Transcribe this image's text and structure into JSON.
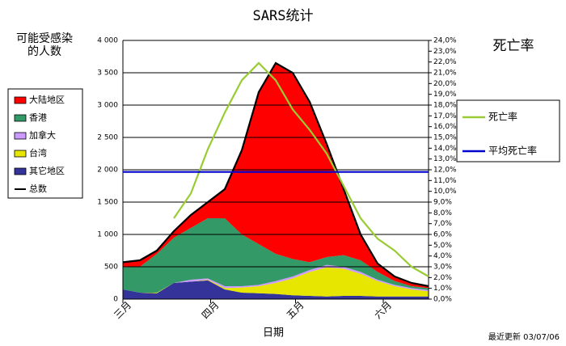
{
  "chart_data": {
    "type": "area",
    "stacked": true,
    "title": "SARS统计",
    "y_label": [
      "可能受感染",
      "的人数"
    ],
    "y2_label": "死亡率",
    "x_label": "日期",
    "footer": "最近更新 03/07/06",
    "x": [
      0,
      6,
      12,
      18,
      24,
      30,
      36,
      42,
      48,
      54,
      60,
      66,
      72,
      78,
      84,
      90,
      96,
      102,
      108
    ],
    "xlim": [
      0,
      108
    ],
    "xticks": [
      {
        "value": 0,
        "label": "三月"
      },
      {
        "value": 31,
        "label": "四月"
      },
      {
        "value": 61,
        "label": "五月"
      },
      {
        "value": 92,
        "label": "六月"
      }
    ],
    "ylim": [
      0,
      4000
    ],
    "yticks": [
      0,
      500,
      {
        "value": 1000,
        "label": "1 000"
      },
      {
        "value": 1500,
        "label": "1 500"
      },
      {
        "value": 2000,
        "label": "2 000"
      },
      {
        "value": 2500,
        "label": "2 500"
      },
      {
        "value": 3000,
        "label": "3 000"
      },
      {
        "value": 3500,
        "label": "3 500"
      },
      {
        "value": 4000,
        "label": "4 000"
      }
    ],
    "y2lim": [
      0,
      24
    ],
    "y2ticks": [
      {
        "value": 0,
        "label": "0,0%"
      },
      {
        "value": 1,
        "label": "1,0%"
      },
      {
        "value": 2,
        "label": "2,0%"
      },
      {
        "value": 3,
        "label": "3,0%"
      },
      {
        "value": 4,
        "label": "4,0%"
      },
      {
        "value": 5,
        "label": "5,0%"
      },
      {
        "value": 6,
        "label": "6,0%"
      },
      {
        "value": 7,
        "label": "7,0%"
      },
      {
        "value": 8,
        "label": "8,0%"
      },
      {
        "value": 9,
        "label": "9,0%"
      },
      {
        "value": 10,
        "label": "10,0%"
      },
      {
        "value": 11,
        "label": "11,0%"
      },
      {
        "value": 12,
        "label": "12,0%"
      },
      {
        "value": 13,
        "label": "13,0%"
      },
      {
        "value": 14,
        "label": "14,0%"
      },
      {
        "value": 15,
        "label": "15,0%"
      },
      {
        "value": 16,
        "label": "16,0%"
      },
      {
        "value": 17,
        "label": "17,0%"
      },
      {
        "value": 18,
        "label": "18,0%"
      },
      {
        "value": 19,
        "label": "19,0%"
      },
      {
        "value": 20,
        "label": "20,0%"
      },
      {
        "value": 21,
        "label": "21,0%"
      },
      {
        "value": 22,
        "label": "22,0%"
      },
      {
        "value": 23,
        "label": "23,0%"
      },
      {
        "value": 24,
        "label": "24,0%"
      }
    ],
    "grid": true,
    "series": [
      {
        "name": "大陆地区",
        "kind": "area",
        "color": "#ff0000",
        "values": [
          80,
          100,
          50,
          100,
          200,
          250,
          450,
          1300,
          2350,
          2950,
          2880,
          2480,
          1750,
          1020,
          400,
          130,
          70,
          50,
          30
        ]
      },
      {
        "name": "香港",
        "kind": "area",
        "color": "#339966",
        "values": [
          340,
          400,
          600,
          700,
          800,
          930,
          1050,
          800,
          630,
          420,
          270,
          120,
          120,
          180,
          180,
          120,
          60,
          30,
          30
        ]
      },
      {
        "name": "加拿大",
        "kind": "area",
        "color": "#cc99ff",
        "values": [
          0,
          0,
          0,
          0,
          30,
          20,
          30,
          20,
          20,
          30,
          30,
          30,
          40,
          30,
          30,
          20,
          20,
          20,
          20
        ]
      },
      {
        "name": "台湾",
        "kind": "area",
        "color": "#e6e600",
        "values": [
          0,
          0,
          10,
          0,
          0,
          10,
          20,
          80,
          110,
          170,
          260,
          370,
          450,
          420,
          340,
          240,
          160,
          110,
          80
        ]
      },
      {
        "name": "其它地区",
        "kind": "area",
        "color": "#333399",
        "values": [
          150,
          100,
          90,
          250,
          270,
          290,
          150,
          100,
          90,
          80,
          60,
          50,
          40,
          50,
          50,
          40,
          40,
          40,
          40
        ]
      },
      {
        "name": "总数",
        "kind": "line",
        "color": "#000000",
        "values": [
          570,
          600,
          750,
          1050,
          1300,
          1500,
          1700,
          2300,
          3200,
          3650,
          3500,
          3050,
          2400,
          1700,
          1000,
          550,
          350,
          250,
          200
        ]
      },
      {
        "name": "死亡率",
        "kind": "line",
        "axis": "y2",
        "color": "#99cc33",
        "values": [
          null,
          null,
          null,
          7.5,
          9.8,
          13.9,
          17.3,
          20.3,
          21.9,
          20.3,
          17.6,
          15.7,
          13.5,
          10.5,
          7.5,
          5.6,
          4.5,
          3.0,
          2.1
        ]
      },
      {
        "name": "平均死亡率",
        "kind": "line",
        "axis": "y2",
        "color": "#0000cc",
        "values": [
          11.8,
          11.8,
          11.8,
          11.8,
          11.8,
          11.8,
          11.8,
          11.8,
          11.8,
          11.8,
          11.8,
          11.8,
          11.8,
          11.8,
          11.8,
          11.8,
          11.8,
          11.8,
          11.8
        ]
      }
    ]
  }
}
